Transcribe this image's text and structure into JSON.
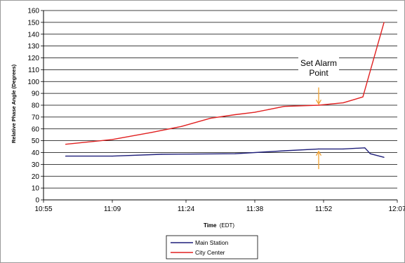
{
  "chart_data": {
    "type": "line",
    "title": "",
    "xlabel": "Time",
    "xlabel_unit": "(EDT)",
    "ylabel": "Relative Phase Angle (Degrees)",
    "ylim": [
      0,
      160
    ],
    "yticks": [
      0,
      10,
      20,
      30,
      40,
      50,
      60,
      70,
      80,
      90,
      100,
      110,
      120,
      130,
      140,
      150,
      160
    ],
    "xlim": [
      655,
      727
    ],
    "xtick_values": [
      655,
      669,
      684,
      698,
      712,
      727
    ],
    "xtick_labels": [
      "10:55",
      "11:09",
      "11:24",
      "11:38",
      "11:52",
      "12:07"
    ],
    "grid": "horizontal",
    "legend_position": "bottom-center",
    "series": [
      {
        "name": "Main Station",
        "color": "#1f1f7a",
        "points": [
          [
            659.5,
            37
          ],
          [
            669,
            37
          ],
          [
            679,
            38.5
          ],
          [
            694,
            39
          ],
          [
            704,
            41.5
          ],
          [
            711,
            43
          ],
          [
            716,
            43
          ],
          [
            720.4,
            44
          ],
          [
            721.5,
            39
          ],
          [
            724.3,
            36
          ]
        ]
      },
      {
        "name": "City Center",
        "color": "#e02020",
        "points": [
          [
            659.5,
            47
          ],
          [
            669,
            51
          ],
          [
            677,
            57
          ],
          [
            683,
            62
          ],
          [
            689,
            69
          ],
          [
            694,
            72
          ],
          [
            698,
            74
          ],
          [
            704,
            79
          ],
          [
            711,
            80
          ],
          [
            716,
            82
          ],
          [
            720,
            87
          ],
          [
            724.3,
            150
          ]
        ]
      }
    ],
    "annotations": [
      {
        "text_lines": [
          "Set Alarm",
          "Point"
        ],
        "color": "#000000"
      }
    ],
    "arrow_color": "#f0a030",
    "arrows": [
      {
        "x": 711,
        "from_y": 95,
        "to_y": 81,
        "direction": "down"
      },
      {
        "x": 711,
        "from_y": 26,
        "to_y": 41,
        "direction": "up"
      }
    ]
  }
}
